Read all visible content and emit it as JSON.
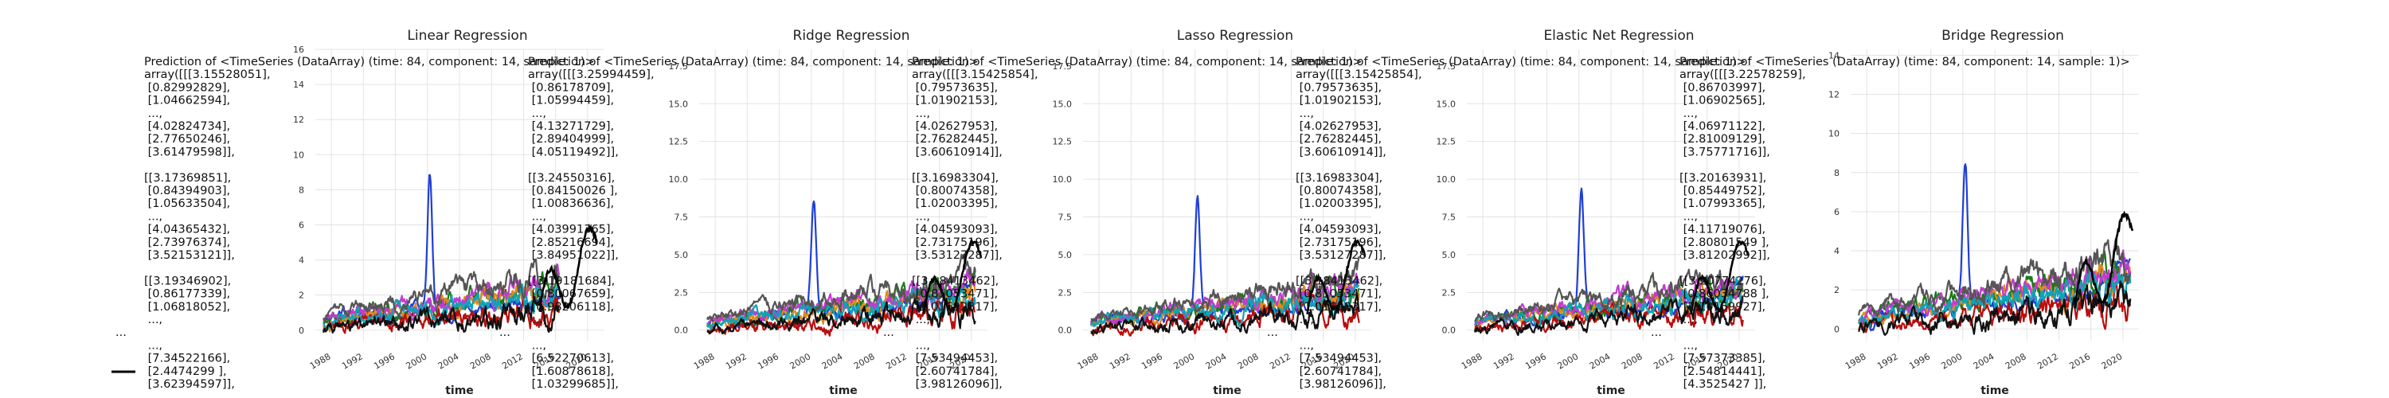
{
  "chart_data": [
    {
      "type": "line",
      "title": "Linear Regression",
      "xlabel": "time",
      "ylabel": "",
      "x_ticks": [
        "1988",
        "1992",
        "1996",
        "2000",
        "2004",
        "2008",
        "2012",
        "2016",
        "2020"
      ],
      "y_ticks": [
        "0",
        "2",
        "4",
        "6",
        "8",
        "10",
        "12",
        "14",
        "16"
      ],
      "xlim": [
        1986,
        2022
      ],
      "ylim": [
        -0.6,
        16
      ],
      "legend_lines": [
        "Prediction of <TimeSeries (DataArray) (time: 84, component: 14, sample: 1)>",
        "array([[[3.15528051],",
        "        [0.82992829],",
        "        [1.04662594],",
        "        ...,",
        "        [4.02824734],",
        "        [2.77650246],",
        "        [3.61479598]],",
        "",
        "       [[3.17369851],",
        "        [0.84394903],",
        "        [1.05633504],",
        "        ...,",
        "        [4.04365432],",
        "        [2.73976374],",
        "        [3.52153121]],",
        "",
        "       [[3.19346902],",
        "        [0.86177339],",
        "        [1.06818052],",
        "        ...,",
        "...",
        "        ...,",
        "        [7.34522166],",
        "        [2.4474299 ],",
        "        [3.62394597]],"
      ]
    },
    {
      "type": "line",
      "title": "Ridge Regression",
      "xlabel": "time",
      "ylabel": "",
      "x_ticks": [
        "1988",
        "1992",
        "1996",
        "2000",
        "2004",
        "2008",
        "2012",
        "2016",
        "2020"
      ],
      "y_ticks": [
        "0.0",
        "2.5",
        "5.0",
        "7.5",
        "10.0",
        "12.5",
        "15.0",
        "17.5"
      ],
      "xlim": [
        1986,
        2022
      ],
      "ylim": [
        -0.7,
        18.6
      ],
      "legend_lines": [
        "Prediction of <TimeSeries (DataArray) (time: 84, component: 14, sample: 1)>",
        "array([[[3.25994459],",
        "        [0.86178709],",
        "        [1.05994459],",
        "        ...,",
        "        [4.13271729],",
        "        [2.89404999],",
        "        [4.05119492]],",
        "",
        "       [[3.24550316],",
        "        [0.84150026 ],",
        "        [1.00836636],",
        "        ...,",
        "        [4.03991365],",
        "        [2.85216694],",
        "        [3.84951022]],",
        "",
        "       [[3.19181684],",
        "        [0.80067659],",
        "        [0.98206118],",
        "        ...,",
        "...",
        "        ...,",
        "        [6.52270613],",
        "        [1.60878618],",
        "        [1.03299685]],"
      ]
    },
    {
      "type": "line",
      "title": "Lasso Regression",
      "xlabel": "time",
      "ylabel": "",
      "x_ticks": [
        "1988",
        "1992",
        "1996",
        "2000",
        "2004",
        "2008",
        "2012",
        "2016",
        "2020"
      ],
      "y_ticks": [
        "0.0",
        "2.5",
        "5.0",
        "7.5",
        "10.0",
        "12.5",
        "15.0",
        "17.5"
      ],
      "xlim": [
        1986,
        2022
      ],
      "ylim": [
        -0.7,
        18.6
      ],
      "legend_lines": [
        "Prediction of <TimeSeries (DataArray) (time: 84, component: 14, sample: 1)>",
        "array([[[3.15425854],",
        "        [0.79573635],",
        "        [1.01902153],",
        "        ...,",
        "        [4.02627953],",
        "        [2.76282445],",
        "        [3.60610914]],",
        "",
        "       [[3.16983304],",
        "        [0.80074358],",
        "        [1.02003395],",
        "        ...,",
        "        [4.04593093],",
        "        [2.73175196],",
        "        [3.53127287]],",
        "",
        "       [[3.18413462],",
        "        [0.81053471],",
        "        [1.01692317],",
        "        ...,",
        "...",
        "        ...,",
        "        [7.53494453],",
        "        [2.60741784],",
        "        [3.98126096]],"
      ]
    },
    {
      "type": "line",
      "title": "Elastic Net Regression",
      "xlabel": "time",
      "ylabel": "",
      "x_ticks": [
        "1988",
        "1992",
        "1996",
        "2000",
        "2004",
        "2008",
        "2012",
        "2016",
        "2020"
      ],
      "y_ticks": [
        "0.0",
        "2.5",
        "5.0",
        "7.5",
        "10.0",
        "12.5",
        "15.0",
        "17.5"
      ],
      "xlim": [
        1986,
        2022
      ],
      "ylim": [
        -0.7,
        18.6
      ],
      "legend_lines": [
        "Prediction of <TimeSeries (DataArray) (time: 84, component: 14, sample: 1)>",
        "array([[[3.15425854],",
        "        [0.79573635],",
        "        [1.01902153],",
        "        ...,",
        "        [4.02627953],",
        "        [2.76282445],",
        "        [3.60610914]],",
        "",
        "       [[3.16983304],",
        "        [0.80074358],",
        "        [1.02003395],",
        "        ...,",
        "        [4.04593093],",
        "        [2.73175196],",
        "        [3.53127287]],",
        "",
        "       [[3.18413462],",
        "        [0.81053471],",
        "        [1.01692317],",
        "        ...,",
        "...",
        "        ...,",
        "        [7.53494453],",
        "        [2.60741784],",
        "        [3.98126096]],"
      ]
    },
    {
      "type": "line",
      "title": "Bridge Regression",
      "xlabel": "time",
      "ylabel": "",
      "x_ticks": [
        "1988",
        "1992",
        "1996",
        "2000",
        "2004",
        "2008",
        "2012",
        "2016",
        "2020"
      ],
      "y_ticks": [
        "0",
        "2",
        "4",
        "6",
        "8",
        "10",
        "12",
        "14"
      ],
      "xlim": [
        1986,
        2022
      ],
      "ylim": [
        -0.6,
        14.3
      ],
      "legend_lines": [
        "Prediction of <TimeSeries (DataArray) (time: 84, component: 14, sample: 1)>",
        "array([[[3.22578259],",
        "        [0.86703997],",
        "        [1.06902565],",
        "        ...,",
        "        [4.06971122],",
        "        [2.81009129],",
        "        [3.75771716]],",
        "",
        "       [[3.20163931],",
        "        [0.85449752],",
        "        [1.07993365],",
        "        ...,",
        "        [4.11719076],",
        "        [2.80801549 ],",
        "        [3.81202992]],",
        "",
        "       [[3.20774276],",
        "        [0.86034788 ],",
        "        [1.10159927],",
        "        ...,",
        "...",
        "        ...,",
        "        [7.57373385],",
        "        [2.54814441],",
        "        [4.3525427 ]],"
      ]
    }
  ],
  "series_colors": [
    "#1f3fd6",
    "#1b7a1b",
    "#e08a1e",
    "#b80f0f",
    "#c23bd0",
    "#0fa3b8",
    "#555555",
    "#111111"
  ]
}
